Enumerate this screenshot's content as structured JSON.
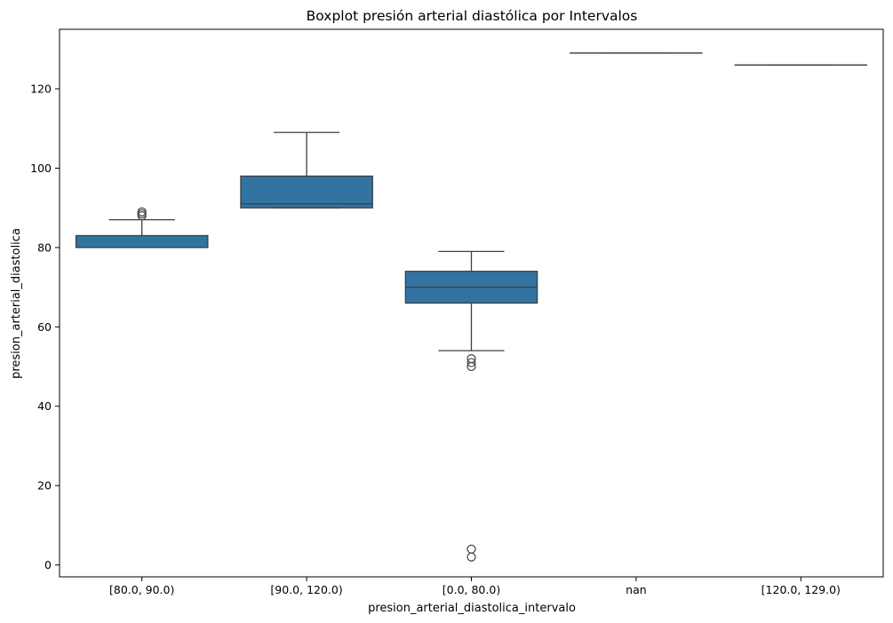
{
  "chart_data": {
    "type": "box",
    "title": "Boxplot presión arterial diastólica por Intervalos",
    "xlabel": "presion_arterial_diastolica_intervalo",
    "ylabel": "presion_arterial_diastolica",
    "ylim": [
      -3,
      135
    ],
    "yticks": [
      0,
      20,
      40,
      60,
      80,
      100,
      120
    ],
    "categories": [
      "[80.0, 90.0)",
      "[90.0, 120.0)",
      "[0.0, 80.0)",
      "nan",
      "[120.0, 129.0)"
    ],
    "boxes": [
      {
        "category": "[80.0, 90.0)",
        "whisker_low": 80,
        "q1": 80,
        "median": 80,
        "q3": 83,
        "whisker_high": 87,
        "outliers": [
          88,
          88.5,
          89
        ]
      },
      {
        "category": "[90.0, 120.0)",
        "whisker_low": 90,
        "q1": 90,
        "median": 91,
        "q3": 98,
        "whisker_high": 109,
        "outliers": []
      },
      {
        "category": "[0.0, 80.0)",
        "whisker_low": 54,
        "q1": 66,
        "median": 70,
        "q3": 74,
        "whisker_high": 79,
        "outliers": [
          52,
          51,
          50,
          4,
          2
        ]
      },
      {
        "category": "nan",
        "whisker_low": 129,
        "q1": 129,
        "median": 129,
        "q3": 129,
        "whisker_high": 129,
        "outliers": []
      },
      {
        "category": "[120.0, 129.0)",
        "whisker_low": 126,
        "q1": 126,
        "median": 126,
        "q3": 126,
        "whisker_high": 126,
        "outliers": []
      }
    ],
    "box_color": "#3274a1",
    "line_color": "#3f3f3f",
    "grid": false
  }
}
